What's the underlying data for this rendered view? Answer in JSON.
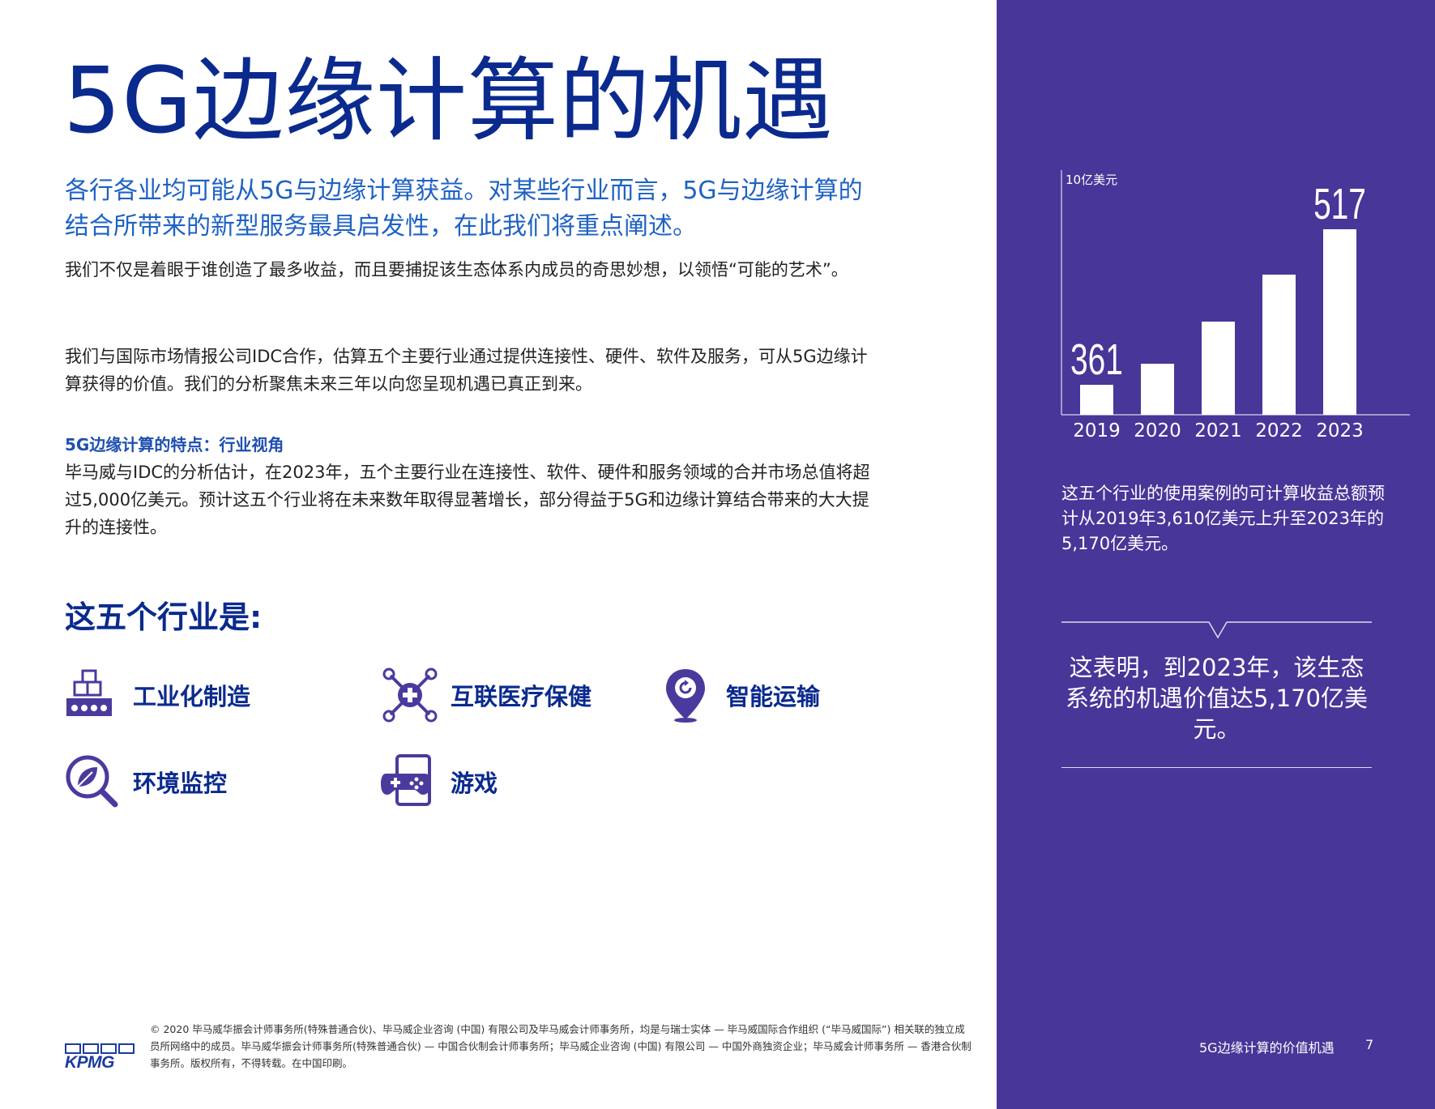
{
  "page": {
    "title": "5G边缘计算的机遇",
    "lead": "各行各业均可能从5G与边缘计算获益。对某些行业而言，5G与边缘计算的结合所带来的新型服务最具启发性，在此我们将重点阐述。",
    "paragraph_1": "我们不仅是着眼于谁创造了最多收益，而且要捕捉该生态体系内成员的奇思妙想，以领悟“可能的艺术”。",
    "paragraph_2": "我们与国际市场情报公司IDC合作，估算五个主要行业通过提供连接性、硬件、软件及服务，可从5G边缘计算获得的价值。我们的分析聚焦未来三年以向您呈现机遇已真正到来。",
    "sub_heading": "5G边缘计算的特点：行业视角",
    "paragraph_3": "毕马威与IDC的分析估计，在2023年，五个主要行业在连接性、软件、硬件和服务领域的合并市场总值将超过5,000亿美元。预计这五个行业将在未来数年取得显著增长，部分得益于5G和边缘计算结合带来的大大提升的连接性。",
    "industries_title": "这五个行业是:",
    "industries": [
      {
        "label": "工业化制造",
        "icon": "factory-conveyor-icon"
      },
      {
        "label": "互联医疗保健",
        "icon": "connected-health-icon"
      },
      {
        "label": "智能运输",
        "icon": "location-pin-icon"
      },
      {
        "label": "环境监控",
        "icon": "leaf-magnifier-icon"
      },
      {
        "label": "游戏",
        "icon": "gamepad-icon"
      }
    ]
  },
  "chart_data": {
    "type": "bar",
    "categories": [
      "2019",
      "2020",
      "2021",
      "2022",
      "2023"
    ],
    "values": [
      37,
      63,
      115,
      173,
      229
    ],
    "value_labels": {
      "2019": "361",
      "2023": "517"
    },
    "ylabel": "10亿美元",
    "grid": false,
    "bar_color": "#ffffff"
  },
  "sidebar": {
    "chart_caption": "这五个行业的使用案例的可计算收益总额预计从2019年3,610亿美元上升至2023年的5,170亿美元。",
    "callout": "这表明，到2023年，该生态系统的机遇价值达5,170亿美元。",
    "footer_label": "5G边缘计算的价值机遇",
    "page_number": "7"
  },
  "footer": {
    "copyright": "© 2020 毕马威华振会计师事务所(特殊普通合伙)、毕马威企业咨询 (中国) 有限公司及毕马威会计师事务所，均是与瑞士实体 — 毕马威国际合作组织 (“毕马威国际”) 相关联的独立成员所网络中的成员。毕马威华振会计师事务所(特殊普通合伙) — 中国合伙制会计师事务所；毕马威企业咨询 (中国) 有限公司 — 中国外商独资企业；毕马威会计师事务所 — 香港合伙制事务所。版权所有，不得转载。在中国印刷。",
    "logo_text": "KPMG"
  },
  "colors": {
    "title_blue": "#0a2a8e",
    "lead_blue": "#1e62c4",
    "panel_purple": "#483698",
    "icon_purple": "#4b3a9e"
  }
}
